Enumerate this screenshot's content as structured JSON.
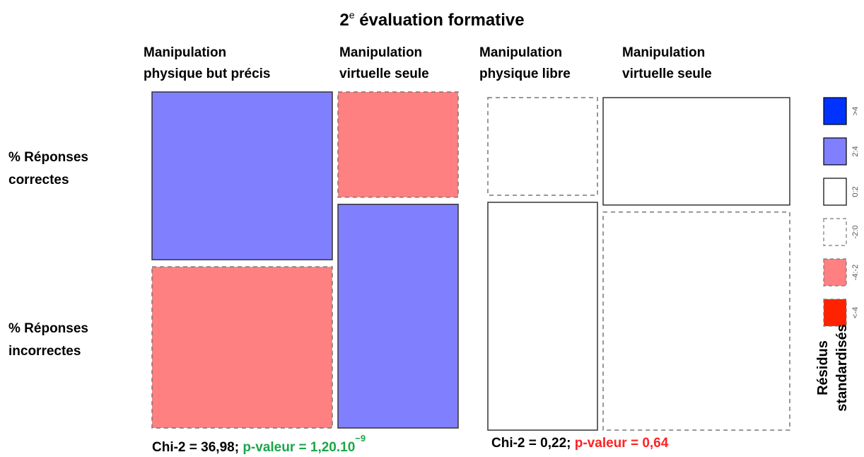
{
  "chart_data": {
    "type": "mosaic",
    "title": {
      "main": "2",
      "sup": "e",
      "rest": " évaluation formative"
    },
    "row_labels": [
      [
        "% Réponses",
        "correctes"
      ],
      [
        "% Réponses",
        "incorrectes"
      ]
    ],
    "legend": {
      "title": [
        "Résidus",
        "standardisés"
      ],
      "items": [
        {
          "label": ">4",
          "color": "#0033ff",
          "dashed": false
        },
        {
          "label": "2:4",
          "color": "#8080ff",
          "dashed": false
        },
        {
          "label": "0:2",
          "color": "#ffffff",
          "dashed": false
        },
        {
          "label": "-2:0",
          "color": "#ffffff",
          "dashed": true
        },
        {
          "label": "-4:-2",
          "color": "#ff8080",
          "dashed": true
        },
        {
          "label": "<-4",
          "color": "#ff2200",
          "dashed": true
        }
      ]
    },
    "panels": [
      {
        "columns": [
          {
            "label": [
              "Manipulation",
              "physique but précis"
            ],
            "share": 60,
            "rows": [
              {
                "share": 51,
                "residual": "2:4"
              },
              {
                "share": 49,
                "residual": "-4:-2"
              }
            ]
          },
          {
            "label": [
              "Manipulation",
              "virtuelle seule"
            ],
            "share": 40,
            "rows": [
              {
                "share": 32,
                "residual": "-4:-2"
              },
              {
                "share": 68,
                "residual": "2:4"
              }
            ]
          }
        ],
        "chi2": "Chi-2 = 36,98; ",
        "pvalue": "p-valeur = 1,20.10",
        "pvalue_sup": "−9",
        "pvalue_color": "#1aa64a"
      },
      {
        "columns": [
          {
            "label": [
              "Manipulation",
              "physique libre"
            ],
            "share": 37,
            "rows": [
              {
                "share": 30,
                "residual": "-2:0"
              },
              {
                "share": 70,
                "residual": "0:2"
              }
            ]
          },
          {
            "label": [
              "Manipulation",
              "virtuelle seule"
            ],
            "share": 63,
            "rows": [
              {
                "share": 33,
                "residual": "0:2"
              },
              {
                "share": 67,
                "residual": "-2:0"
              }
            ]
          }
        ],
        "chi2": "Chi-2 = 0,22; ",
        "pvalue": "p-valeur = 0,64",
        "pvalue_color": "#ff2222"
      }
    ]
  }
}
